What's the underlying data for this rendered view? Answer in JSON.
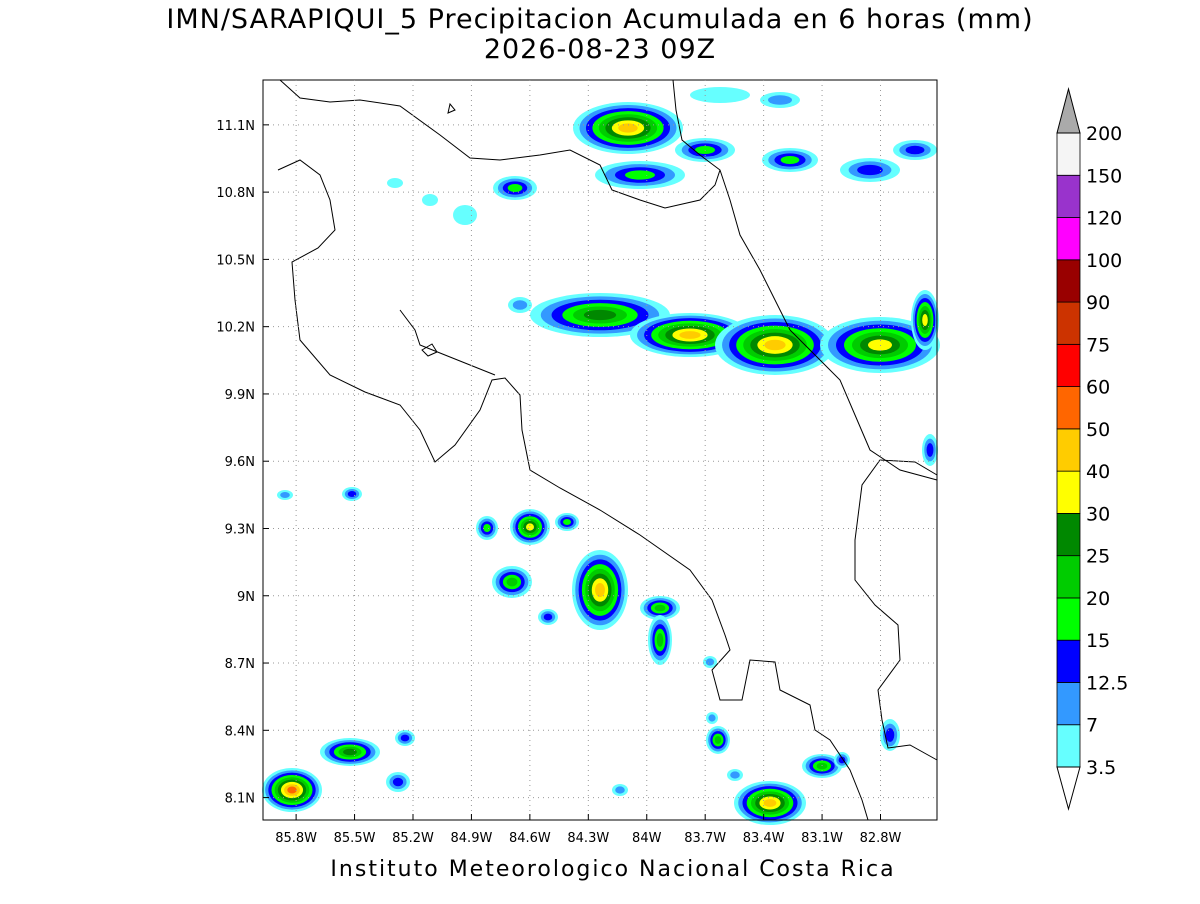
{
  "title": {
    "line1": "IMN/SARAPIQUI_5 Precipitacion Acumulada en 6 horas (mm)",
    "line2": "2026-08-23 09Z"
  },
  "map": {
    "lonlim": [
      -85.97,
      -82.51
    ],
    "latlim": [
      8.0,
      11.3
    ],
    "grid": true,
    "lon_ticks": [
      {
        "value": -85.8,
        "label": "85.8W"
      },
      {
        "value": -85.5,
        "label": "85.5W"
      },
      {
        "value": -85.2,
        "label": "85.2W"
      },
      {
        "value": -84.9,
        "label": "84.9W"
      },
      {
        "value": -84.6,
        "label": "84.6W"
      },
      {
        "value": -84.3,
        "label": "84.3W"
      },
      {
        "value": -84,
        "label": "84W"
      },
      {
        "value": -83.7,
        "label": "83.7W"
      },
      {
        "value": -83.4,
        "label": "83.4W"
      },
      {
        "value": -83.1,
        "label": "83.1W"
      },
      {
        "value": -82.8,
        "label": "82.8W"
      }
    ],
    "lat_ticks": [
      {
        "value": 8.1,
        "label": "8.1N"
      },
      {
        "value": 8.4,
        "label": "8.4N"
      },
      {
        "value": 8.7,
        "label": "8.7N"
      },
      {
        "value": 9,
        "label": "9N"
      },
      {
        "value": 9.3,
        "label": "9.3N"
      },
      {
        "value": 9.6,
        "label": "9.6N"
      },
      {
        "value": 9.9,
        "label": "9.9N"
      },
      {
        "value": 10.2,
        "label": "10.2N"
      },
      {
        "value": 10.5,
        "label": "10.5N"
      },
      {
        "value": 10.8,
        "label": "10.8N"
      },
      {
        "value": 11.1,
        "label": "11.1N"
      }
    ]
  },
  "colorbar": {
    "levels": [
      3.5,
      7,
      12.5,
      15,
      20,
      25,
      30,
      40,
      50,
      60,
      75,
      90,
      100,
      120,
      150,
      200
    ],
    "colors": [
      "#66ffff",
      "#3399ff",
      "#0000ff",
      "#00ff00",
      "#00cc00",
      "#008800",
      "#ffff00",
      "#ffcc00",
      "#ff6600",
      "#ff0000",
      "#cc3300",
      "#990000",
      "#ff00ff",
      "#9933cc",
      "#f5f5f5"
    ],
    "over_color": "#aaaaaa",
    "under_color": "#ffffff"
  },
  "footer": "Instituto Meteorologico Nacional Costa Rica"
}
